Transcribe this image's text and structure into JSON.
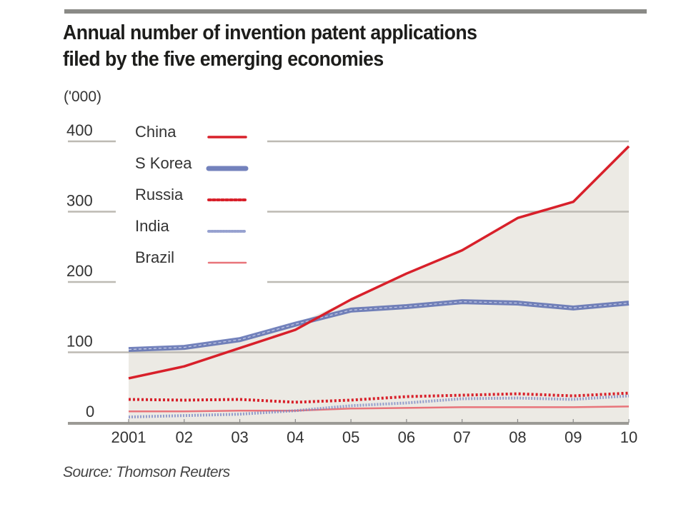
{
  "chart_data": {
    "type": "line",
    "title": "Annual number of invention patent applications filed by the five emerging economies",
    "unit_label": "('000)",
    "xlabel": "",
    "ylabel": "('000)",
    "x": [
      "2001",
      "02",
      "03",
      "04",
      "05",
      "06",
      "07",
      "08",
      "09",
      "10"
    ],
    "ylim": [
      0,
      400
    ],
    "yticks": [
      0,
      100,
      200,
      300,
      400
    ],
    "grid": true,
    "legend_position": "top-left",
    "shaded_area": "under upper envelope of series",
    "series": [
      {
        "name": "China",
        "color": "#d8202a",
        "style": "solid",
        "values": [
          63,
          80,
          106,
          132,
          175,
          212,
          245,
          291,
          314,
          393
        ]
      },
      {
        "name": "S Korea",
        "color": "#5b6cb0",
        "style": "thick-double",
        "values": [
          104,
          107,
          118,
          140,
          160,
          165,
          172,
          170,
          163,
          170
        ]
      },
      {
        "name": "Russia",
        "color": "#d8202a",
        "style": "dotted",
        "values": [
          33,
          32,
          33,
          29,
          32,
          37,
          39,
          41,
          38,
          42
        ]
      },
      {
        "name": "India",
        "color": "#7d8ac4",
        "style": "circles",
        "values": [
          8,
          10,
          12,
          17,
          24,
          28,
          34,
          35,
          33,
          38
        ]
      },
      {
        "name": "Brazil",
        "color": "#e8747a",
        "style": "thin",
        "values": [
          16,
          16,
          17,
          17,
          20,
          21,
          22,
          22,
          22,
          23
        ]
      }
    ],
    "source": "Source: Thomson Reuters"
  },
  "colors": {
    "plot_fill": "#eceae4",
    "grid": "#bdbab3",
    "axis": "#9b9a95"
  }
}
